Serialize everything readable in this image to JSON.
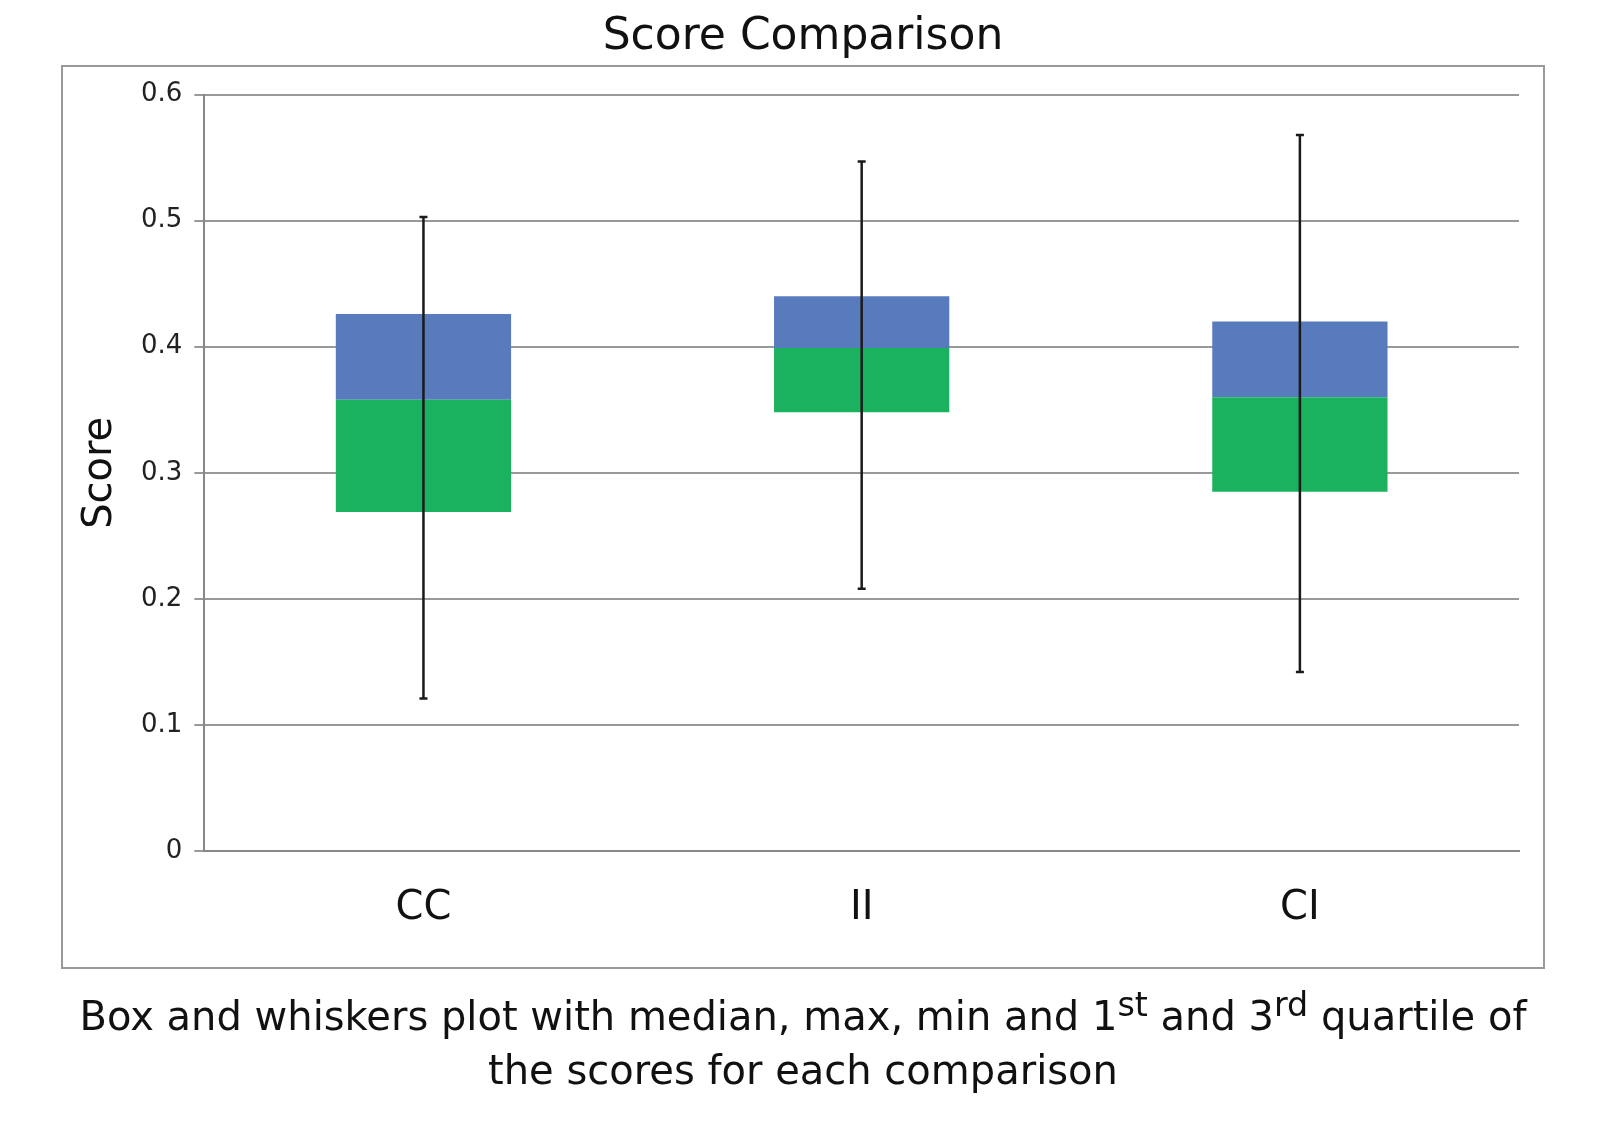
{
  "chart_data": {
    "type": "box",
    "title": "Score Comparison",
    "ylabel": "Score",
    "categories": [
      "CC",
      "II",
      "CI"
    ],
    "series": [
      {
        "color": "#587bbd",
        "colors": [
          "#1ab25f",
          "#1ab25f",
          "#1ab25f"
        ],
        "boxes": [
          {
            "low": 0.121,
            "q1": 0.269,
            "median": 0.358,
            "q3": 0.426,
            "high": 0.503
          },
          {
            "low": 0.208,
            "q1": 0.348,
            "median": 0.399,
            "q3": 0.44,
            "high": 0.547
          },
          {
            "low": 0.142,
            "q1": 0.285,
            "median": 0.36,
            "q3": 0.42,
            "high": 0.568
          }
        ]
      }
    ],
    "ylim": [
      0,
      0.6
    ],
    "yticks": [
      0,
      0.1,
      0.2,
      0.3,
      0.4,
      0.5,
      0.6
    ],
    "grid": "y",
    "annotations": [
      "Box and whiskers plot with median, max, min and 1$^{st}$ and 3$^{rd}$ quartile of the scores for each comparison"
    ]
  }
}
